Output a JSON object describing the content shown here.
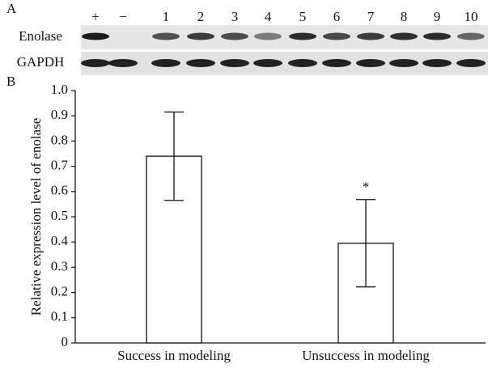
{
  "panels": {
    "a": "A",
    "b": "B"
  },
  "blot": {
    "lanes": [
      "+",
      "−",
      "1",
      "2",
      "3",
      "4",
      "5",
      "6",
      "7",
      "8",
      "9",
      "10"
    ],
    "rows": [
      "Enolase",
      "GAPDH"
    ]
  },
  "chart_data": {
    "type": "bar",
    "ylabel": "Relative expression level of enolase",
    "categories": [
      "Success in modeling",
      "Unsuccess in modeling"
    ],
    "values": [
      0.74,
      0.395
    ],
    "errors": [
      0.175,
      0.173
    ],
    "color": "#ffffff",
    "annotation": "*",
    "ylim": [
      0,
      1.0
    ],
    "yticks": [
      0,
      0.1,
      0.2,
      0.3,
      0.4,
      0.5,
      0.6,
      0.7,
      0.8,
      0.9,
      {
        "value": 1.0,
        "label": "1.0"
      }
    ]
  }
}
